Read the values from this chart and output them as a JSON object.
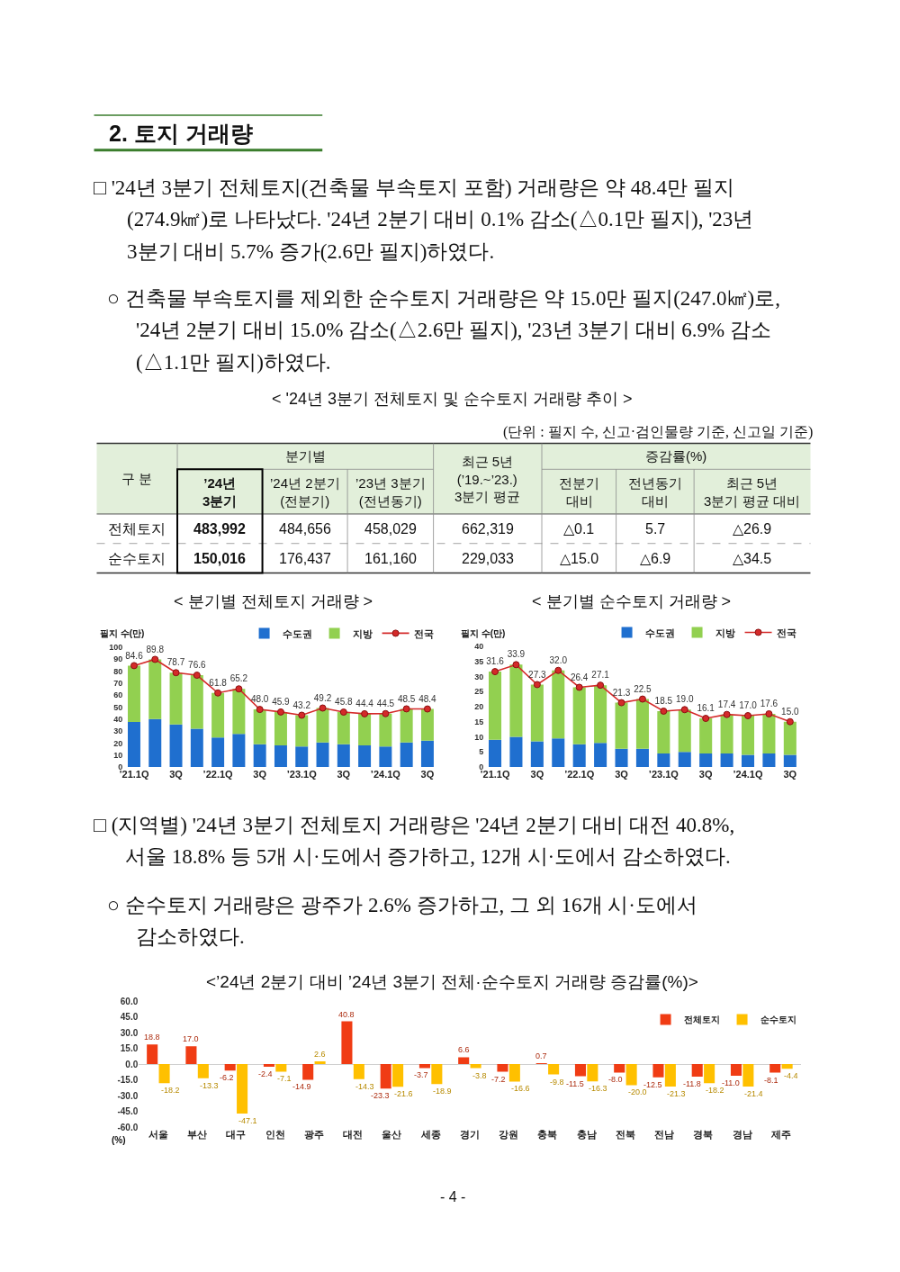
{
  "chart_data": [
    {
      "type": "other",
      "title": "2. 토지 거래량",
      "annotations": [
        "□ '24년 3분기 전체토지(건축물 부속토지 포함) 거래량은 약 48.4만 필지\n(274.9㎢)로 나타났다. '24년 2분기 대비 0.1% 감소(△0.1만 필지), '23년\n3분기 대비 5.7% 증가(2.6만 필지)하였다.",
        "○ 건축물 부속토지를 제외한 순수토지 거래량은 약 15.0만 필지(247.0㎢)로,\n'24년 2분기 대비 15.0% 감소(△2.6만 필지), '23년 3분기 대비 6.9% 감소\n(△1.1만 필지)하였다."
      ]
    },
    {
      "type": "other",
      "title": "< '24년 3분기 전체토지 및 순수토지 거래량 추이 >",
      "subtitle": "(단위 : 필지 수, 신고·검인물량 기준, 신고일 기준)",
      "annotations": [
        "구 분",
        "분기별",
        "증감률(%)",
        "’24년\n3분기",
        "’24년 2분기\n(전분기)",
        "’23년 3분기\n(전년동기)",
        "최근 5년\n(’19.~’23.)\n3분기 평균",
        "전분기\n대비",
        "전년동기\n대비",
        "최근 5년\n3분기 평균 대비",
        "전체토지",
        "483,992",
        "484,656",
        "458,029",
        "662,319",
        "△0.1",
        "5.7",
        "△26.9",
        "순수토지",
        "150,016",
        "176,437",
        "161,160",
        "229,033",
        "△15.0",
        "△6.9",
        "△34.5"
      ]
    },
    {
      "type": "bar",
      "title": "< 분기별 전체토지 거래량 >",
      "ylabel": "필지 수(만)",
      "stacked": true,
      "legend": "top right",
      "categories": [
        "’21.1Q",
        null,
        "3Q",
        null,
        "’22.1Q",
        null,
        "3Q",
        null,
        "’23.1Q",
        null,
        "3Q",
        null,
        "’24.1Q",
        null,
        "3Q"
      ],
      "ylim": [
        0,
        100
      ],
      "yticks": [
        0,
        10,
        20,
        30,
        40,
        50,
        60,
        70,
        80,
        90,
        100
      ],
      "series": [
        {
          "name": "수도권",
          "color": "#1f6fcf",
          "values": [
            37.5,
            40,
            35.5,
            32,
            24.5,
            27.5,
            19,
            18,
            17,
            20.5,
            19,
            18,
            17,
            20.5,
            22
          ]
        },
        {
          "name": "지방",
          "color": "#92d050",
          "values": [
            47.1,
            49.8,
            43.2,
            44.6,
            37.3,
            37.7,
            29.0,
            27.9,
            26.2,
            28.7,
            26.8,
            26.4,
            27.5,
            28.0,
            26.4
          ]
        },
        {
          "name": "전국",
          "type": "line",
          "color": "#d42a2a",
          "marker": "circle",
          "values": [
            84.6,
            89.8,
            78.7,
            76.6,
            61.8,
            65.2,
            48.0,
            45.9,
            43.2,
            49.2,
            45.8,
            44.4,
            44.5,
            48.5,
            48.4
          ],
          "value_labels": [
            "84.6",
            "89.8",
            "78.7",
            "76.6",
            "61.8",
            "65.2",
            "48.0",
            "45.9",
            "43.2",
            "49.2",
            "45.8",
            "44.4",
            "44.5",
            "48.5",
            "48.4"
          ]
        }
      ]
    },
    {
      "type": "bar",
      "title": "< 분기별 순수토지 거래량 >",
      "ylabel": "필지 수(만)",
      "stacked": true,
      "legend": "top right",
      "categories": [
        "’21.1Q",
        null,
        "3Q",
        null,
        "’22.1Q",
        null,
        "3Q",
        null,
        "’23.1Q",
        null,
        "3Q",
        null,
        "’24.1Q",
        null,
        "3Q"
      ],
      "ylim": [
        0,
        40
      ],
      "yticks": [
        0,
        5,
        10,
        15,
        20,
        25,
        30,
        35,
        40
      ],
      "series": [
        {
          "name": "수도권",
          "color": "#1f6fcf",
          "values": [
            9,
            10,
            8.5,
            9.5,
            7.5,
            8,
            6,
            6,
            4.5,
            5,
            4.5,
            4.5,
            4,
            4.5,
            4
          ]
        },
        {
          "name": "지방",
          "color": "#92d050",
          "values": [
            22.6,
            23.9,
            18.8,
            22.5,
            18.9,
            19.1,
            15.3,
            16.5,
            14.0,
            14.0,
            11.6,
            12.9,
            13.0,
            13.1,
            11.0
          ]
        },
        {
          "name": "전국",
          "type": "line",
          "color": "#d42a2a",
          "marker": "circle",
          "values": [
            31.6,
            33.9,
            27.3,
            32.0,
            26.4,
            27.1,
            21.3,
            22.5,
            18.5,
            19.0,
            16.1,
            17.4,
            17.0,
            17.6,
            15.0
          ],
          "value_labels": [
            "31.6",
            "33.9",
            "27.3",
            "32.0",
            "26.4",
            "27.1",
            "21.3",
            "22.5",
            "18.5",
            "19.0",
            "16.1",
            "17.4",
            "17.0",
            "17.6",
            "15.0"
          ]
        }
      ]
    },
    {
      "type": "other",
      "annotations": [
        "□ (지역별) '24년 3분기 전체토지 거래량은 '24년 2분기 대비 대전 40.8%,\n서울 18.8% 등 5개 시·도에서 증가하고, 12개 시·도에서 감소하였다.",
        "○ 순수토지 거래량은 광주가 2.6% 증가하고, 그 외 16개 시·도에서\n감소하였다."
      ]
    },
    {
      "type": "bar",
      "title": "<’24년 2분기 대비 ’24년 3분기 전체·순수토지 거래량 증감률(%)>",
      "ylabel": "(%)",
      "legend": "top right",
      "categories": [
        "서울",
        "부산",
        "대구",
        "인천",
        "광주",
        "대전",
        "울산",
        "세종",
        "경기",
        "강원",
        "충북",
        "충남",
        "전북",
        "전남",
        "경북",
        "경남",
        "제주"
      ],
      "ylim": [
        -60,
        60
      ],
      "yticks": [
        {
          "value": 60,
          "label": "60.0"
        },
        {
          "value": 45,
          "label": "45.0"
        },
        {
          "value": 30,
          "label": "30.0"
        },
        {
          "value": 15,
          "label": "15.0"
        },
        {
          "value": 0,
          "label": "0.0"
        },
        {
          "value": -15,
          "label": "-15.0"
        },
        {
          "value": -30,
          "label": "-30.0"
        },
        {
          "value": -45,
          "label": "-45.0"
        },
        {
          "value": -60,
          "label": "-60.0"
        }
      ],
      "series": [
        {
          "name": "전체토지",
          "color": "#f03c14",
          "values": [
            18.8,
            17.0,
            -6.2,
            -2.4,
            -14.9,
            40.8,
            -23.3,
            -3.7,
            6.6,
            -7.2,
            0.7,
            -11.5,
            -8.0,
            -12.5,
            -11.8,
            -11.0,
            -8.1
          ],
          "value_labels": [
            "18.8",
            "17.0",
            "-6.2",
            "-2.4",
            "-14.9",
            "40.8",
            "-23.3",
            "-3.7",
            "6.6",
            "-7.2",
            "0.7",
            "-11.5",
            "-8.0",
            "-12.5",
            "-11.8",
            "-11.0",
            "-8.1"
          ]
        },
        {
          "name": "순수토지",
          "color": "#ffc000",
          "values": [
            -18.2,
            -13.3,
            -47.1,
            -7.1,
            2.6,
            -14.3,
            -21.6,
            -18.9,
            -3.8,
            -16.6,
            -9.8,
            -16.3,
            -20.0,
            -21.3,
            -18.2,
            -21.4,
            -4.4
          ],
          "value_labels": [
            "-18.2",
            "-13.3",
            "-47.1",
            "-7.1",
            "2.6",
            "-14.3",
            "-21.6",
            "-18.9",
            "-3.8",
            "-16.6",
            "-9.8",
            "-16.3",
            "-20.0",
            "-21.3",
            "-18.2",
            "-21.4",
            "-4.4"
          ]
        }
      ]
    },
    {
      "type": "other",
      "annotations": [
        "- 4 -"
      ]
    }
  ]
}
